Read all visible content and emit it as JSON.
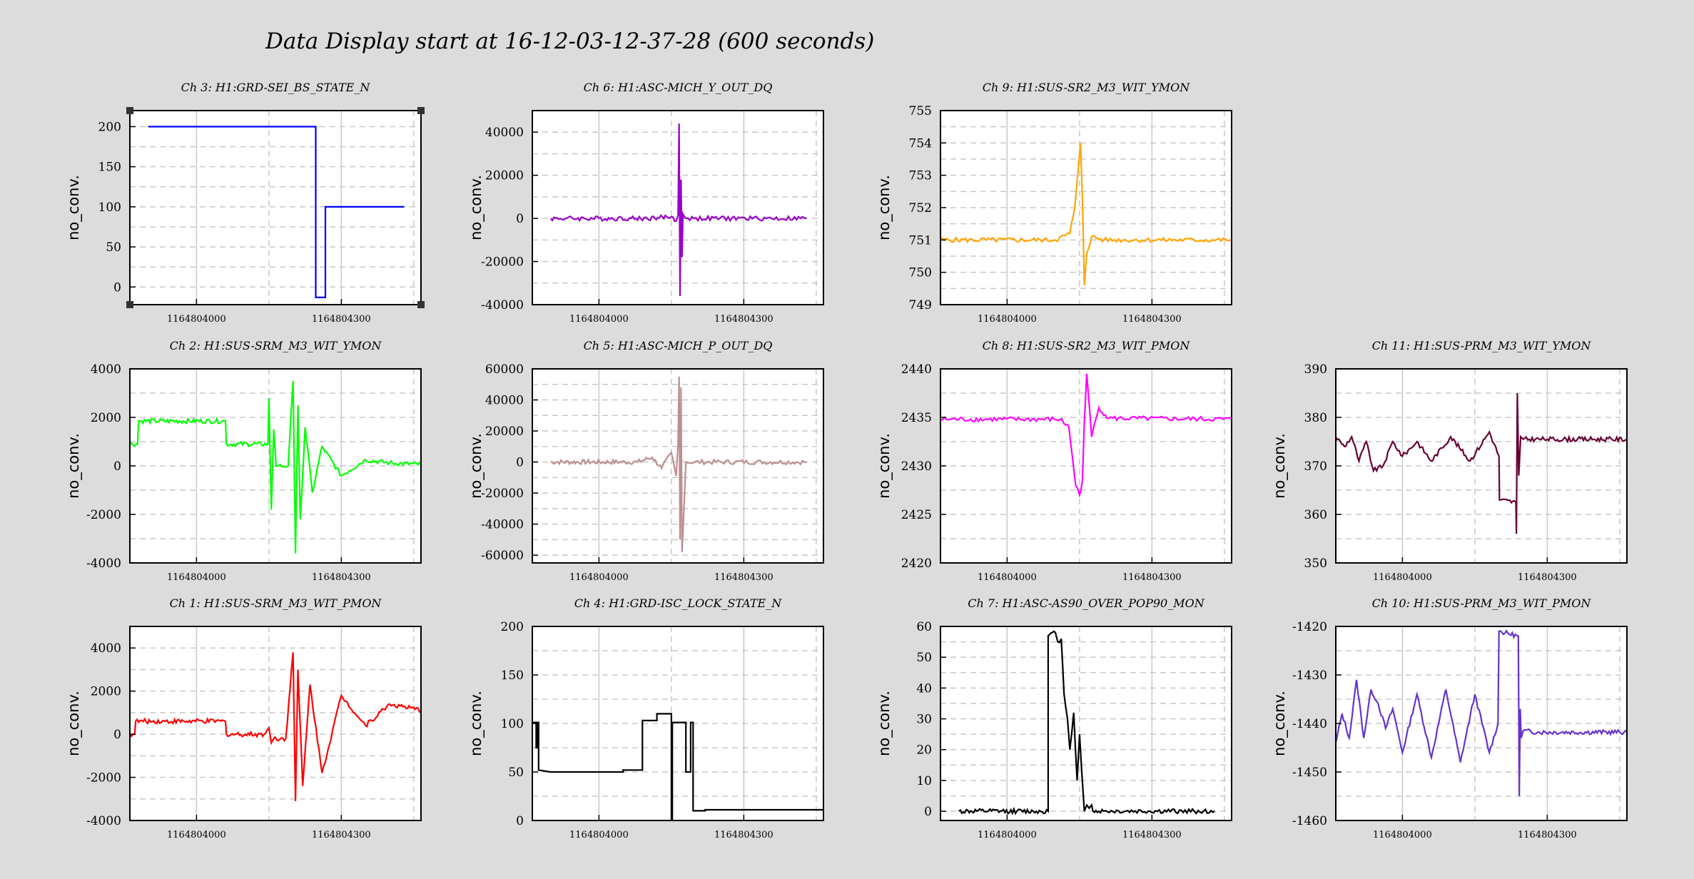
{
  "page_title": "Data Display start at 16-12-03-12-37-28 (600 seconds)",
  "chart_data": [
    {
      "id": "ch3",
      "type": "line",
      "title": "Ch 3: H1:GRD-SEI_BS_STATE_N",
      "ylabel": "no_conv.",
      "color": "#0000ff",
      "ylim": [
        -22,
        220
      ],
      "yticks": [
        0,
        50,
        100,
        150,
        200
      ],
      "yticklabels": [
        "0",
        "50",
        "100",
        "150",
        "200"
      ],
      "xticks": [
        1164804000,
        1164804300
      ],
      "xticklabels": [
        "1164804000",
        "1164804300"
      ],
      "xlim": [
        1164803862,
        1164804465
      ],
      "x": [
        1164803900,
        1164804247,
        1164804247,
        1164804267,
        1164804267,
        1164804430
      ],
      "values": [
        200,
        200,
        -13,
        -13,
        100,
        100
      ],
      "selected": true
    },
    {
      "id": "ch6",
      "type": "line",
      "title": "Ch 6: H1:ASC-MICH_Y_OUT_DQ",
      "ylabel": "no_conv.",
      "color": "#9900cc",
      "ylim": [
        -40000,
        50000
      ],
      "yticks": [
        -40000,
        -20000,
        0,
        20000,
        40000
      ],
      "yticklabels": [
        "-40000",
        "-20000",
        "0",
        "20000",
        "40000"
      ],
      "xticks": [
        1164804000,
        1164804300
      ],
      "xticklabels": [
        "1164804000",
        "1164804300"
      ],
      "xlim": [
        1164803862,
        1164804465
      ],
      "x": [
        1164803900,
        1164804100,
        1164804150,
        1164804160,
        1164804164,
        1164804166,
        1164804168,
        1164804170,
        1164804172,
        1164804174,
        1164804180,
        1164804430
      ],
      "values": [
        0,
        0,
        800,
        -1200,
        1500,
        44000,
        -36000,
        18000,
        -18000,
        2000,
        0,
        0
      ]
    },
    {
      "id": "ch9",
      "type": "line",
      "title": "Ch 9: H1:SUS-SR2_M3_WIT_YMON",
      "ylabel": "no_conv.",
      "color": "#ffa500",
      "ylim": [
        749,
        755
      ],
      "yticks": [
        749,
        750,
        751,
        752,
        753,
        754,
        755
      ],
      "yticklabels": [
        "749",
        "750",
        "751",
        "752",
        "753",
        "754",
        "755"
      ],
      "xticks": [
        1164804000,
        1164804300
      ],
      "xticklabels": [
        "1164804000",
        "1164804300"
      ],
      "xlim": [
        1164803862,
        1164804465
      ],
      "x": [
        1164803862,
        1164804100,
        1164804130,
        1164804140,
        1164804148,
        1164804152,
        1164804156,
        1164804160,
        1164804165,
        1164804175,
        1164804200,
        1164804465
      ],
      "values": [
        751.0,
        751.0,
        751.2,
        752.0,
        753.3,
        754.0,
        752.3,
        749.6,
        750.6,
        751.1,
        751.0,
        751.0
      ]
    },
    {
      "id": "ch2",
      "type": "line",
      "title": "Ch 2: H1:SUS-SRM_M3_WIT_YMON",
      "ylabel": "no_conv.",
      "color": "#00ff00",
      "ylim": [
        -4000,
        4000
      ],
      "yticks": [
        -4000,
        -2000,
        0,
        2000,
        4000
      ],
      "yticklabels": [
        "-4000",
        "-2000",
        "0",
        "2000",
        "4000"
      ],
      "xticks": [
        1164804000,
        1164804300
      ],
      "xticklabels": [
        "1164804000",
        "1164804300"
      ],
      "xlim": [
        1164803862,
        1164804465
      ],
      "x": [
        1164803862,
        1164803878,
        1164803880,
        1164804060,
        1164804062,
        1164804148,
        1164804150,
        1164804155,
        1164804160,
        1164804165,
        1164804170,
        1164804190,
        1164804200,
        1164804205,
        1164804210,
        1164804215,
        1164804225,
        1164804240,
        1164804260,
        1164804300,
        1164804350,
        1164804400,
        1164804465
      ],
      "values": [
        900,
        900,
        1850,
        1850,
        900,
        900,
        2800,
        -1800,
        1500,
        0,
        0,
        0,
        3500,
        -3600,
        2500,
        -2200,
        1600,
        -1100,
        800,
        -400,
        250,
        120,
        60
      ]
    },
    {
      "id": "ch5",
      "type": "line",
      "title": "Ch 5: H1:ASC-MICH_P_OUT_DQ",
      "ylabel": "no_conv.",
      "color": "#bc8f8f",
      "ylim": [
        -65000,
        60000
      ],
      "yticks": [
        -60000,
        -40000,
        -20000,
        0,
        20000,
        40000,
        60000
      ],
      "yticklabels": [
        "-60000",
        "-40000",
        "-20000",
        "0",
        "20000",
        "40000",
        "60000"
      ],
      "xticks": [
        1164804000,
        1164804300
      ],
      "xticklabels": [
        "1164804000",
        "1164804300"
      ],
      "xlim": [
        1164803862,
        1164804465
      ],
      "x": [
        1164803900,
        1164804080,
        1164804110,
        1164804130,
        1164804150,
        1164804160,
        1164804164,
        1164804166,
        1164804168,
        1164804170,
        1164804172,
        1164804180,
        1164804430
      ],
      "values": [
        0,
        0,
        3000,
        -4000,
        6000,
        -9000,
        12000,
        55000,
        -50000,
        48000,
        -58000,
        0,
        0
      ]
    },
    {
      "id": "ch8",
      "type": "line",
      "title": "Ch 8: H1:SUS-SR2_M3_WIT_PMON",
      "ylabel": "no_conv.",
      "color": "#ff00ff",
      "ylim": [
        2420,
        2440
      ],
      "yticks": [
        2420,
        2425,
        2430,
        2435,
        2440
      ],
      "yticklabels": [
        "2420",
        "2425",
        "2430",
        "2435",
        "2440"
      ],
      "xticks": [
        1164804000,
        1164804300
      ],
      "xticklabels": [
        "1164804000",
        "1164804300"
      ],
      "xlim": [
        1164803862,
        1164804465
      ],
      "x": [
        1164803862,
        1164804110,
        1164804128,
        1164804135,
        1164804142,
        1164804150,
        1164804156,
        1164804160,
        1164804165,
        1164804175,
        1164804190,
        1164804210,
        1164804465
      ],
      "values": [
        2434.8,
        2434.8,
        2434.0,
        2431.0,
        2428.0,
        2427.0,
        2428.5,
        2434.5,
        2439.5,
        2433.0,
        2436.0,
        2434.9,
        2434.8
      ]
    },
    {
      "id": "ch11",
      "type": "line",
      "title": "Ch 11: H1:SUS-PRM_M3_WIT_YMON",
      "ylabel": "no_conv.",
      "color": "#660033",
      "ylim": [
        350,
        390
      ],
      "yticks": [
        350,
        360,
        370,
        380,
        390
      ],
      "yticklabels": [
        "350",
        "360",
        "370",
        "380",
        "390"
      ],
      "xticks": [
        1164804000,
        1164804300
      ],
      "xticklabels": [
        "1164804000",
        "1164804300"
      ],
      "xlim": [
        1164803862,
        1164804465
      ],
      "x": [
        1164803862,
        1164803880,
        1164803895,
        1164803910,
        1164803925,
        1164803940,
        1164803960,
        1164803980,
        1164804000,
        1164804030,
        1164804060,
        1164804100,
        1164804140,
        1164804180,
        1164804200,
        1164804201,
        1164804235,
        1164804236,
        1164804238,
        1164804241,
        1164804245,
        1164804250,
        1164804300,
        1164804465
      ],
      "values": [
        376,
        374,
        376,
        371,
        375,
        369,
        370,
        375,
        372,
        375,
        371,
        376,
        371,
        377,
        372,
        363,
        362.5,
        356,
        385,
        368,
        376,
        375.5,
        375.5,
        375.5
      ]
    },
    {
      "id": "ch1",
      "type": "line",
      "title": "Ch 1: H1:SUS-SRM_M3_WIT_PMON",
      "ylabel": "no_conv.",
      "color": "#ff0000",
      "ylim": [
        -4000,
        5000
      ],
      "yticks": [
        -4000,
        -2000,
        0,
        2000,
        4000
      ],
      "yticklabels": [
        "-4000",
        "-2000",
        "0",
        "2000",
        "4000"
      ],
      "xticks": [
        1164804000,
        1164804300
      ],
      "xticklabels": [
        "1164804000",
        "1164804300"
      ],
      "xlim": [
        1164803862,
        1164804465
      ],
      "x": [
        1164803862,
        1164803872,
        1164803874,
        1164804060,
        1164804062,
        1164804140,
        1164804150,
        1164804155,
        1164804160,
        1164804185,
        1164804200,
        1164804205,
        1164804210,
        1164804220,
        1164804235,
        1164804260,
        1164804300,
        1164804350,
        1164804400,
        1164804465
      ],
      "values": [
        0,
        0,
        600,
        600,
        0,
        0,
        300,
        -400,
        -200,
        -200,
        3800,
        -3100,
        3000,
        -2400,
        2300,
        -1800,
        1800,
        400,
        1400,
        1100
      ]
    },
    {
      "id": "ch4",
      "type": "line",
      "title": "Ch 4: H1:GRD-ISC_LOCK_STATE_N",
      "ylabel": "no_conv.",
      "color": "#000000",
      "ylim": [
        0,
        200
      ],
      "yticks": [
        0,
        50,
        100,
        150,
        200
      ],
      "yticklabels": [
        "0",
        "50",
        "100",
        "150",
        "200"
      ],
      "xticks": [
        1164804000,
        1164804300
      ],
      "xticklabels": [
        "1164804000",
        "1164804300"
      ],
      "xlim": [
        1164803862,
        1164804465
      ],
      "x": [
        1164803862,
        1164803870,
        1164803870,
        1164803872,
        1164803872,
        1164803875,
        1164803875,
        1164803900,
        1164804050,
        1164804050,
        1164804090,
        1164804090,
        1164804120,
        1164804120,
        1164804150,
        1164804150,
        1164804152,
        1164804152,
        1164804180,
        1164804180,
        1164804190,
        1164804190,
        1164804195,
        1164804195,
        1164804220,
        1164804220,
        1164804465
      ],
      "values": [
        101,
        101,
        75,
        75,
        101,
        101,
        52,
        50,
        50,
        52,
        52,
        103,
        103,
        110,
        110,
        0,
        0,
        101,
        101,
        50,
        50,
        101,
        101,
        10,
        10,
        11,
        11
      ]
    },
    {
      "id": "ch7",
      "type": "line",
      "title": "Ch 7: H1:ASC-AS90_OVER_POP90_MON",
      "ylabel": "no_conv.",
      "color": "#000000",
      "ylim": [
        -3,
        60
      ],
      "yticks": [
        0,
        10,
        20,
        30,
        40,
        50,
        60
      ],
      "yticklabels": [
        "0",
        "10",
        "20",
        "30",
        "40",
        "50",
        "60"
      ],
      "xticks": [
        1164804000,
        1164804300
      ],
      "xticklabels": [
        "1164804000",
        "1164804300"
      ],
      "xlim": [
        1164803862,
        1164804465
      ],
      "x": [
        1164803900,
        1164804085,
        1164804085,
        1164804100,
        1164804105,
        1164804112,
        1164804118,
        1164804125,
        1164804130,
        1164804138,
        1164804145,
        1164804150,
        1164804155,
        1164804160,
        1164804165,
        1164804170,
        1164804175,
        1164804178,
        1164804190,
        1164804200,
        1164804430
      ],
      "values": [
        0,
        0,
        57,
        58,
        55,
        56,
        38,
        30,
        20,
        32,
        10,
        25,
        12,
        0,
        2,
        1,
        2,
        0,
        0,
        0,
        0
      ]
    },
    {
      "id": "ch10",
      "type": "line",
      "title": "Ch 10: H1:SUS-PRM_M3_WIT_PMON",
      "ylabel": "no_conv.",
      "color": "#6633cc",
      "ylim": [
        -1460,
        -1420
      ],
      "yticks": [
        -1460,
        -1450,
        -1440,
        -1430,
        -1420
      ],
      "yticklabels": [
        "-1460",
        "-1450",
        "-1440",
        "-1430",
        "-1420"
      ],
      "xticks": [
        1164804000,
        1164804300
      ],
      "xticklabels": [
        "1164804000",
        "1164804300"
      ],
      "xlim": [
        1164803862,
        1164804465
      ],
      "x": [
        1164803862,
        1164803875,
        1164803890,
        1164803905,
        1164803920,
        1164803935,
        1164803950,
        1164803965,
        1164803980,
        1164804000,
        1164804030,
        1164804060,
        1164804090,
        1164804120,
        1164804150,
        1164804180,
        1164804198,
        1164804200,
        1164804240,
        1164804242,
        1164804244,
        1164804246,
        1164804250,
        1164804280,
        1164804465
      ],
      "values": [
        -1444,
        -1438,
        -1443,
        -1431,
        -1443,
        -1433,
        -1436,
        -1441,
        -1437,
        -1446,
        -1434,
        -1447,
        -1433,
        -1448,
        -1434,
        -1446,
        -1440,
        -1421,
        -1422,
        -1455,
        -1437,
        -1443,
        -1441.5,
        -1441.8,
        -1441.8
      ]
    }
  ]
}
